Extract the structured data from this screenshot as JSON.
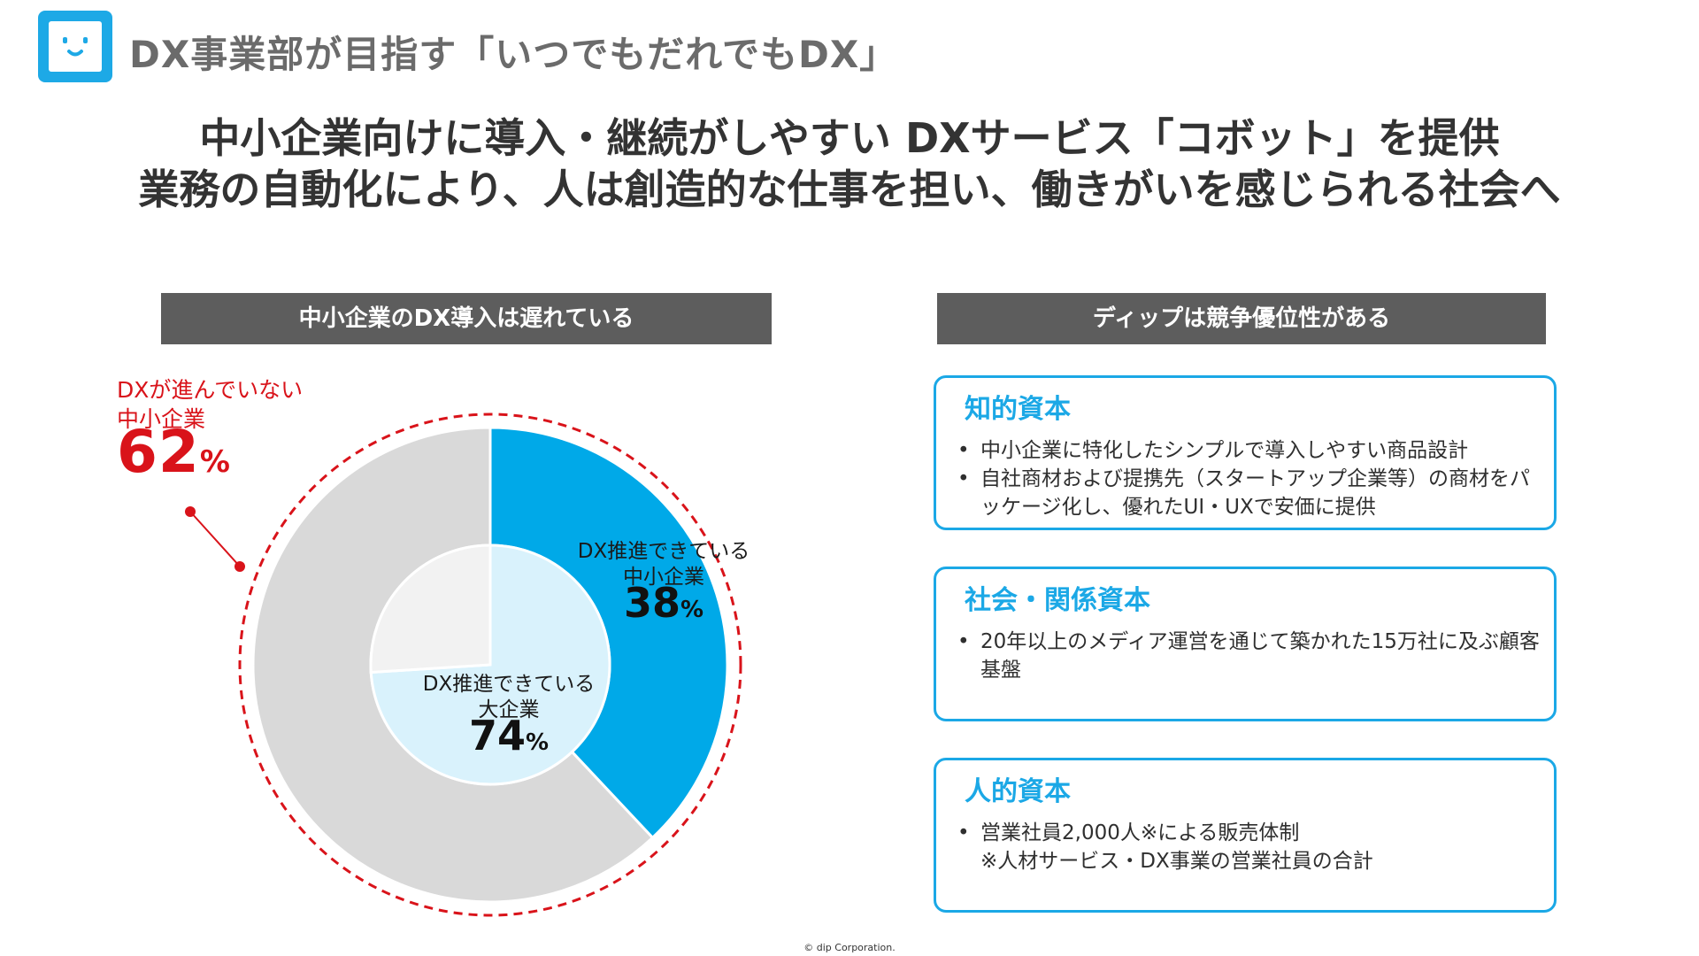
{
  "header": {
    "title": "DX事業部が目指す「いつでもだれでもDX」",
    "headline_line1": "中小企業向けに導入・継続がしやすい DXサービス「コボット」を提供",
    "headline_line2": "業務の自動化により、人は創造的な仕事を担い、働きがいを感じられる社会へ"
  },
  "left_section": {
    "header": "中小企業のDX導入は遅れている"
  },
  "right_section": {
    "header": "ディップは競争優位性がある"
  },
  "chart_data": {
    "type": "pie",
    "rings": [
      {
        "name": "中小企業",
        "ring": "outer",
        "slices": [
          {
            "label_line1": "DX推進できている",
            "label_line2": "中小企業",
            "value": 38,
            "color": "#00a9e8"
          },
          {
            "label_line1": "DXが進んでいない",
            "label_line2": "中小企業",
            "value": 62,
            "color": "#d9d9d9"
          }
        ]
      },
      {
        "name": "大企業",
        "ring": "inner",
        "slices": [
          {
            "label_line1": "DX推進できている",
            "label_line2": "大企業",
            "value": 74,
            "color": "#d9f2fc"
          },
          {
            "label": "",
            "value": 26,
            "color": "#f2f2f2"
          }
        ]
      }
    ],
    "percent_sign": "%",
    "highlight_color": "#d9131a"
  },
  "cards": [
    {
      "title": "知的資本",
      "bullets": [
        "中小企業に特化したシンプルで導入しやすい商品設計",
        "自社商材および提携先（スタートアップ企業等）の商材をパッケージ化し、優れたUI・UXで安価に提供"
      ]
    },
    {
      "title": "社会・関係資本",
      "bullets": [
        "20年以上のメディア運営を通じて築かれた15万社に及ぶ顧客基盤"
      ]
    },
    {
      "title": "人的資本",
      "bullets": [
        "営業社員2,000人※による販売体制"
      ],
      "note": "※人材サービス・DX事業の営業社員の合計"
    }
  ],
  "colors": {
    "accent_blue": "#1ba8e6",
    "header_gray": "#5d5d5d",
    "alert_red": "#d9131a"
  },
  "footer": {
    "copyright": "© dip Corporation."
  }
}
